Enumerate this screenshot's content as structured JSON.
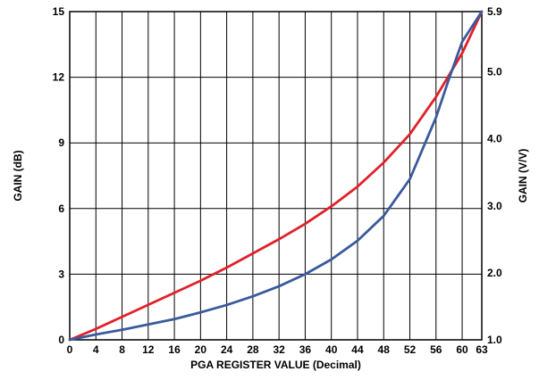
{
  "chart_data": {
    "type": "line",
    "title": "",
    "xlabel": "PGA REGISTER VALUE (Decimal)",
    "ylabel": "GAIN (dB)",
    "y2label": "GAIN (V/V)",
    "xlim": [
      0,
      63
    ],
    "ylim": [
      0,
      15
    ],
    "y2lim": [
      1.0,
      5.9
    ],
    "x_ticks": [
      0,
      4,
      8,
      12,
      16,
      20,
      24,
      28,
      32,
      36,
      40,
      44,
      48,
      52,
      56,
      60,
      63
    ],
    "x_tick_labels": [
      "0",
      "4",
      "8",
      "12",
      "16",
      "20",
      "24",
      "28",
      "32",
      "36",
      "40",
      "44",
      "48",
      "52",
      "56",
      "60",
      "63"
    ],
    "y_ticks": [
      0,
      3,
      6,
      9,
      12,
      15
    ],
    "y_tick_labels": [
      "0",
      "3",
      "6",
      "9",
      "12",
      "15"
    ],
    "y2_ticks": [
      1.0,
      2.0,
      3.0,
      4.0,
      5.0,
      5.9
    ],
    "y2_tick_labels": [
      "1.0",
      "2.0",
      "3.0",
      "4.0",
      "5.0",
      "5.9"
    ],
    "grid": true,
    "series": [
      {
        "axis": "left",
        "color": "#e0212a",
        "x": [
          0,
          4,
          8,
          12,
          16,
          20,
          24,
          28,
          32,
          36,
          40,
          44,
          48,
          52,
          56,
          60,
          63
        ],
        "y": [
          0.0,
          0.5,
          1.05,
          1.6,
          2.15,
          2.7,
          3.3,
          3.95,
          4.6,
          5.3,
          6.1,
          7.0,
          8.1,
          9.4,
          11.1,
          13.1,
          15.0
        ]
      },
      {
        "axis": "right",
        "color": "#3a5a9c",
        "x": [
          0,
          4,
          8,
          12,
          16,
          20,
          24,
          28,
          32,
          36,
          40,
          44,
          48,
          52,
          56,
          58,
          60,
          62,
          63
        ],
        "y": [
          1.0,
          1.08,
          1.15,
          1.23,
          1.31,
          1.41,
          1.52,
          1.65,
          1.8,
          1.98,
          2.2,
          2.48,
          2.85,
          3.4,
          4.32,
          4.9,
          5.45,
          5.75,
          5.9
        ]
      }
    ]
  }
}
